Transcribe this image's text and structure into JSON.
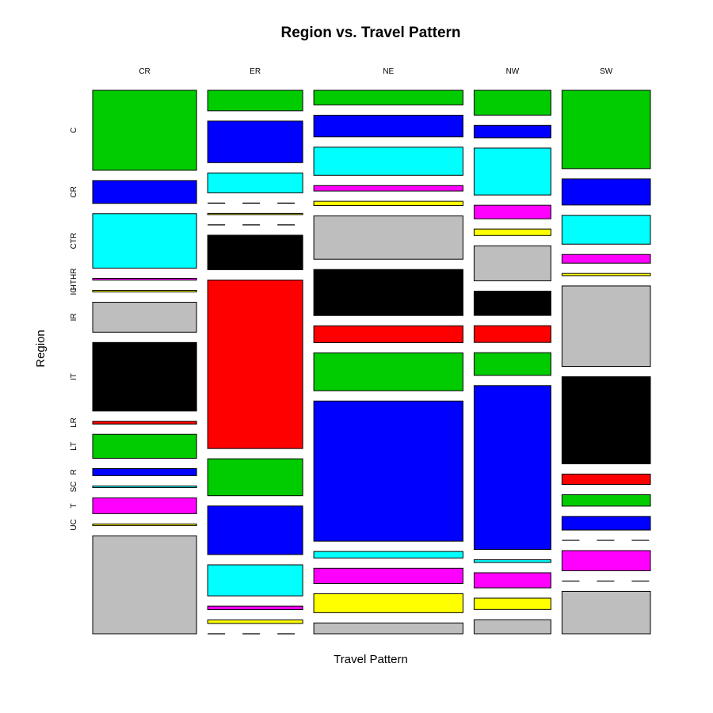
{
  "chart_data": {
    "type": "mosaic",
    "title": "Region vs. Travel Pattern",
    "xlabel": "Travel Pattern",
    "ylabel": "Region",
    "grid": false,
    "legend": "none",
    "columns": [
      "CR",
      "ER",
      "NE",
      "NW",
      "SW"
    ],
    "rows": [
      "C",
      "CR",
      "CTR",
      "HTHR",
      "IC",
      "IR",
      "IT",
      "LR",
      "LT",
      "R",
      "SC",
      "T",
      "UC"
    ],
    "row_colors": [
      "#00cc00",
      "#0000ff",
      "#00ffff",
      "#ff00ff",
      "#ffff00",
      "#bebebe",
      "#000000",
      "#ff0000"
    ],
    "column_proportions": [
      0.188,
      0.172,
      0.27,
      0.139,
      0.16
    ],
    "proportions": {
      "CR": {
        "C": 0.147,
        "CR": 0.042,
        "CTR": 0.1,
        "HTHR": 0.003,
        "IC": 0.003,
        "IR": 0.055,
        "IT": 0.126,
        "LR": 0.005,
        "LT": 0.044,
        "R": 0.013,
        "SC": 0.003,
        "T": 0.029,
        "UC": 0.003,
        "_tail": 0.18
      },
      "ER": {
        "C": 0.035,
        "CR": 0.071,
        "CTR": 0.034,
        "HTHR": 0.0,
        "IC": 0.002,
        "IR": 0.0,
        "IT": 0.059,
        "LR": 0.288,
        "LT": 0.063,
        "R": 0.083,
        "SC": 0.053,
        "T": 0.006,
        "UC": 0.006,
        "_tail": 0.0
      },
      "NE": {
        "C": 0.027,
        "CR": 0.04,
        "CTR": 0.052,
        "HTHR": 0.01,
        "IC": 0.008,
        "IR": 0.08,
        "IT": 0.085,
        "LR": 0.031,
        "LT": 0.07,
        "R": 0.259,
        "SC": 0.012,
        "T": 0.028,
        "UC": 0.035,
        "_tail": 0.02
      },
      "NW": {
        "C": 0.046,
        "CR": 0.023,
        "CTR": 0.087,
        "HTHR": 0.025,
        "IC": 0.012,
        "IR": 0.065,
        "IT": 0.045,
        "LR": 0.031,
        "LT": 0.042,
        "R": 0.304,
        "SC": 0.005,
        "T": 0.028,
        "UC": 0.021,
        "_tail": 0.026
      },
      "SW": {
        "C": 0.144,
        "CR": 0.048,
        "CTR": 0.053,
        "HTHR": 0.016,
        "IC": 0.004,
        "IR": 0.148,
        "IT": 0.16,
        "LR": 0.019,
        "LT": 0.021,
        "R": 0.025,
        "SC": 0.0,
        "T": 0.037,
        "UC": 0.0,
        "_tail": 0.078
      }
    }
  }
}
